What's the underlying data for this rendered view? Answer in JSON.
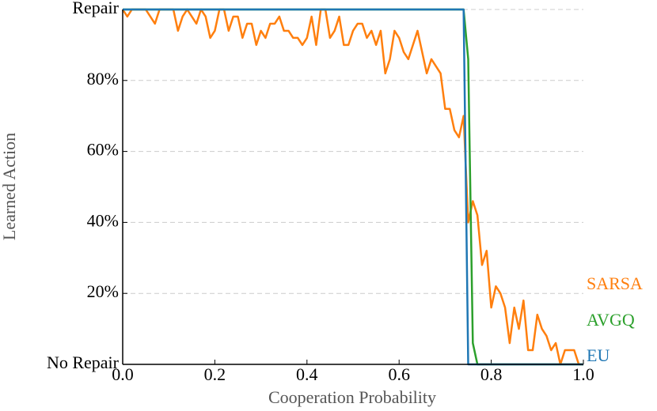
{
  "chart_data": {
    "type": "line",
    "xlabel": "Cooperation Probability",
    "ylabel": "Learned Action",
    "xlim": [
      0,
      1
    ],
    "ylim": [
      0,
      100
    ],
    "xticks": [
      {
        "value": 0,
        "label": "0.0"
      },
      0.2,
      0.4,
      0.6,
      0.8,
      {
        "value": 1,
        "label": "1.0"
      }
    ],
    "yticks": [
      {
        "value": 0,
        "label": "No Repair"
      },
      {
        "value": 20,
        "label": "20%"
      },
      {
        "value": 40,
        "label": "40%"
      },
      {
        "value": 60,
        "label": "60%"
      },
      {
        "value": 80,
        "label": "80%"
      },
      {
        "value": 100,
        "label": "Repair"
      }
    ],
    "grid": true,
    "series": [
      {
        "name": "SARSA",
        "color": "#ff7f0e",
        "x": [
          0,
          0.01,
          0.02,
          0.03,
          0.04,
          0.05,
          0.06,
          0.07,
          0.08,
          0.09,
          0.1,
          0.11,
          0.12,
          0.13,
          0.14,
          0.15,
          0.16,
          0.17,
          0.18,
          0.19,
          0.2,
          0.21,
          0.22,
          0.23,
          0.24,
          0.25,
          0.26,
          0.27,
          0.28,
          0.29,
          0.3,
          0.31,
          0.32,
          0.33,
          0.34,
          0.35,
          0.36,
          0.37,
          0.38,
          0.39,
          0.4,
          0.41,
          0.42,
          0.43,
          0.44,
          0.45,
          0.46,
          0.47,
          0.48,
          0.49,
          0.5,
          0.51,
          0.52,
          0.53,
          0.54,
          0.55,
          0.56,
          0.57,
          0.58,
          0.59,
          0.6,
          0.61,
          0.62,
          0.63,
          0.64,
          0.65,
          0.66,
          0.67,
          0.68,
          0.69,
          0.7,
          0.71,
          0.72,
          0.73,
          0.74,
          0.75,
          0.76,
          0.77,
          0.78,
          0.79,
          0.8,
          0.81,
          0.82,
          0.83,
          0.84,
          0.85,
          0.86,
          0.87,
          0.88,
          0.89,
          0.9,
          0.91,
          0.92,
          0.93,
          0.94,
          0.95,
          0.96,
          0.97,
          0.98,
          0.99,
          1
        ],
        "values": [
          100,
          98,
          100,
          100,
          100,
          100,
          98,
          96,
          100,
          100,
          100,
          100,
          94,
          98,
          100,
          98,
          96,
          100,
          98,
          92,
          94,
          100,
          100,
          94,
          98,
          98,
          92,
          96,
          96,
          90,
          94,
          92,
          96,
          96,
          98,
          94,
          94,
          92,
          92,
          90,
          92,
          98,
          90,
          100,
          100,
          92,
          94,
          98,
          90,
          90,
          94,
          96,
          96,
          92,
          94,
          90,
          94,
          82,
          86,
          94,
          92,
          88,
          86,
          90,
          94,
          88,
          82,
          86,
          84,
          82,
          72,
          72,
          66,
          64,
          70,
          40,
          46,
          42,
          28,
          32,
          16,
          22,
          20,
          16,
          6,
          16,
          10,
          18,
          4,
          4,
          14,
          10,
          8,
          4,
          6,
          0,
          4,
          4,
          4,
          0,
          0
        ]
      },
      {
        "name": "AVGQ",
        "color": "#2ca02c",
        "x": [
          0,
          0.74,
          0.75,
          0.76,
          0.77,
          1
        ],
        "values": [
          100,
          100,
          86,
          6,
          0,
          0
        ]
      },
      {
        "name": "EU",
        "color": "#1f77b4",
        "x": [
          0,
          0.74,
          0.75,
          1
        ],
        "values": [
          100,
          100,
          0,
          0
        ]
      }
    ]
  }
}
